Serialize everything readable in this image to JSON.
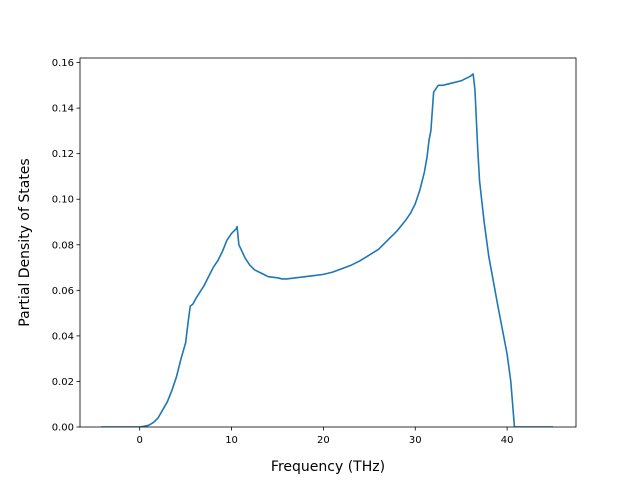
{
  "chart_data": {
    "type": "line",
    "title": "",
    "xlabel": "Frequency (THz)",
    "ylabel": "Partial Density of States",
    "xlim": [
      -6.5,
      47.5
    ],
    "ylim": [
      0.0,
      0.162
    ],
    "xticks": [
      0,
      10,
      20,
      30,
      40
    ],
    "xtick_labels": [
      "0",
      "10",
      "20",
      "30",
      "40"
    ],
    "yticks": [
      0.0,
      0.02,
      0.04,
      0.06,
      0.08,
      0.1,
      0.12,
      0.14,
      0.16
    ],
    "ytick_labels": [
      "0.00",
      "0.02",
      "0.04",
      "0.06",
      "0.08",
      "0.10",
      "0.12",
      "0.14",
      "0.16"
    ],
    "grid": false,
    "color": "#1f77b4",
    "series": [
      {
        "x": [
          -4.2,
          -1,
          0,
          0.5,
          1,
          1.5,
          2,
          2.5,
          3,
          3.5,
          4,
          4.5,
          5,
          5.3,
          5.5,
          5.8,
          6.2,
          7,
          7.5,
          8,
          8.5,
          9,
          9.5,
          10,
          10.5,
          10.6,
          10.8,
          11.5,
          12,
          12.5,
          13,
          13.5,
          14,
          15,
          15.5,
          16,
          17,
          18,
          19,
          20,
          21,
          22,
          23,
          24,
          25,
          26,
          27,
          28,
          29,
          29.5,
          30,
          30.5,
          31,
          31.3,
          31.5,
          31.7,
          32,
          32.5,
          33,
          34,
          35,
          36,
          36.3,
          36.5,
          36.8,
          37,
          37.5,
          38,
          39,
          40,
          40.4,
          40.8,
          41,
          43,
          45
        ],
        "y": [
          0.0,
          0.0,
          0.0,
          0.0003,
          0.0008,
          0.002,
          0.004,
          0.0075,
          0.011,
          0.016,
          0.022,
          0.03,
          0.037,
          0.047,
          0.053,
          0.054,
          0.057,
          0.062,
          0.066,
          0.07,
          0.073,
          0.077,
          0.082,
          0.085,
          0.087,
          0.088,
          0.08,
          0.074,
          0.071,
          0.069,
          0.068,
          0.067,
          0.066,
          0.0655,
          0.065,
          0.065,
          0.0655,
          0.066,
          0.0665,
          0.067,
          0.068,
          0.0695,
          0.071,
          0.073,
          0.0755,
          0.078,
          0.082,
          0.086,
          0.091,
          0.094,
          0.098,
          0.104,
          0.112,
          0.119,
          0.126,
          0.13,
          0.147,
          0.15,
          0.15,
          0.151,
          0.152,
          0.154,
          0.155,
          0.148,
          0.122,
          0.108,
          0.09,
          0.075,
          0.053,
          0.032,
          0.02,
          0.0,
          0.0,
          0.0,
          0.0
        ]
      }
    ]
  }
}
